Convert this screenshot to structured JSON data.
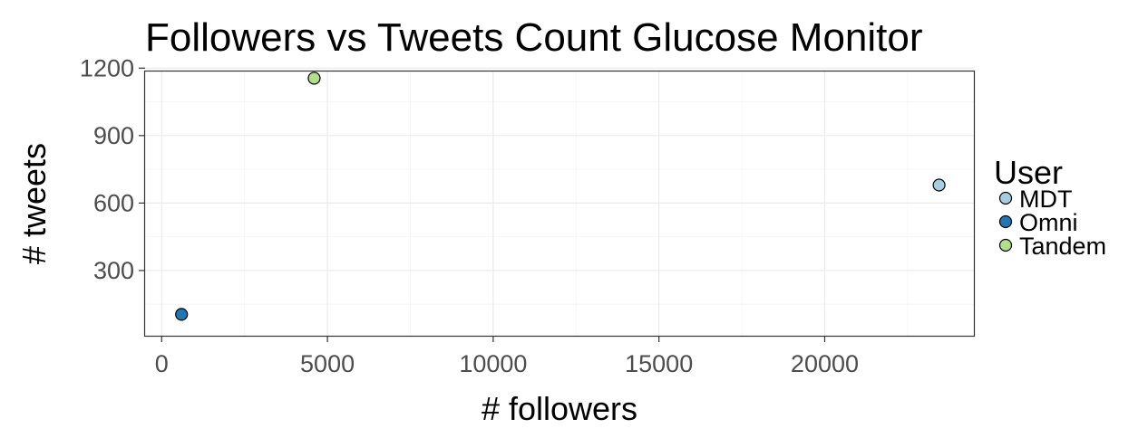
{
  "chart_data": {
    "type": "scatter",
    "title": "Followers vs Tweets Count Glucose Monitor",
    "xlabel": "# followers",
    "ylabel": "# tweets",
    "xlim": [
      -500,
      24500
    ],
    "ylim": [
      10,
      1185
    ],
    "x_ticks": [
      0,
      5000,
      10000,
      15000,
      20000
    ],
    "y_ticks": [
      300,
      600,
      900,
      1200
    ],
    "x_tick_labels": [
      "0",
      "5000",
      "10000",
      "15000",
      "20000"
    ],
    "y_tick_labels": [
      "300",
      "600",
      "900",
      "1200"
    ],
    "grid": true,
    "legend_title": "User",
    "legend_position": "right",
    "series": [
      {
        "name": "MDT",
        "color": "#a6cee3",
        "x": [
          23450
        ],
        "y": [
          680
        ]
      },
      {
        "name": "Omni",
        "color": "#1f78b4",
        "x": [
          600
        ],
        "y": [
          105
        ]
      },
      {
        "name": "Tandem",
        "color": "#b2df8a",
        "x": [
          4600
        ],
        "y": [
          1155
        ]
      }
    ]
  }
}
